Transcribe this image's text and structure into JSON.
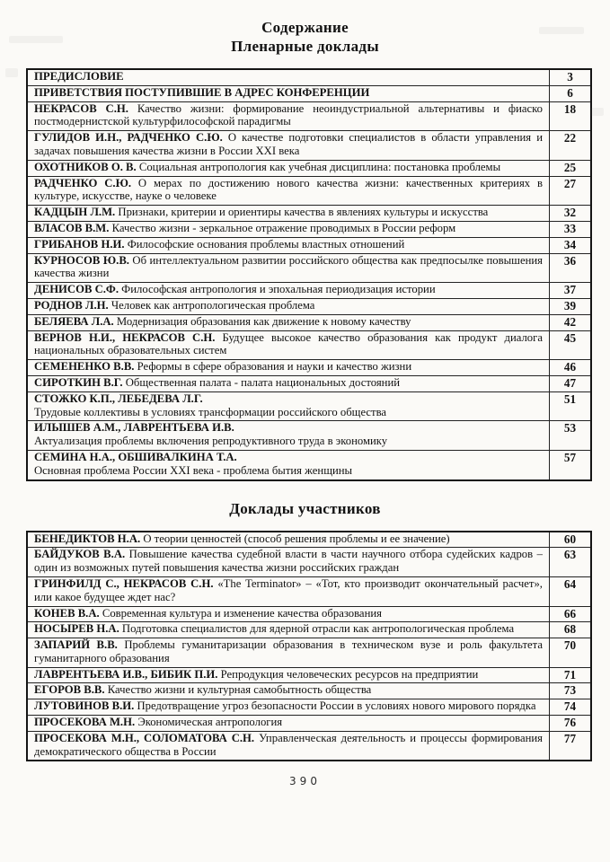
{
  "page": {
    "title": "Содержание",
    "footer_page_number": "390"
  },
  "sections": [
    {
      "heading": "Пленарные доклады",
      "rows": [
        {
          "authors": "ПРЕДИСЛОВИЕ",
          "title": "",
          "page": "3"
        },
        {
          "authors": "ПРИВЕТСТВИЯ ПОСТУПИВШИЕ В АДРЕС КОНФЕРЕНЦИИ",
          "title": "",
          "page": "6"
        },
        {
          "authors": "НЕКРАСОВ С.Н.",
          "title": "Качество жизни: формирование неоиндустриальной альтернативы и фиаско постмодернистской культурфилософской парадигмы",
          "page": "18"
        },
        {
          "authors": "ГУЛИДОВ И.Н., РАДЧЕНКО С.Ю.",
          "title": "О качестве подготовки специалистов в области управления и задачах повышения качества жизни в России XXI века",
          "page": "22"
        },
        {
          "authors": "ОХОТНИКОВ О. В.",
          "title": "Социальная антропология как учебная дисциплина: постановка проблемы",
          "page": "25"
        },
        {
          "authors": "РАДЧЕНКО С.Ю.",
          "title": "О мерах по достижению нового качества жизни: качественных критериях в культуре, искусстве, науке о человеке",
          "page": "27"
        },
        {
          "authors": "КАДЦЫН Л.М.",
          "title": "Признаки, критерии и ориентиры качества в явлениях культуры и искусства",
          "page": "32"
        },
        {
          "authors": "ВЛАСОВ В.М.",
          "title": "Качество жизни - зеркальное отражение проводимых в России реформ",
          "page": "33"
        },
        {
          "authors": "ГРИБАНОВ Н.И.",
          "title": "Философские основания проблемы властных отношений",
          "page": "34"
        },
        {
          "authors": "КУРНОСОВ Ю.В.",
          "title": "Об интеллектуальном развитии российского общества как предпосылке повышения качества жизни",
          "page": "36"
        },
        {
          "authors": "ДЕНИСОВ С.Ф.",
          "title": "Философская антропология и эпохальная периодизация истории",
          "page": "37"
        },
        {
          "authors": "РОДНОВ Л.Н.",
          "title": "Человек как антропологическая проблема",
          "page": "39"
        },
        {
          "authors": "БЕЛЯЕВА Л.А.",
          "title": "Модернизация образования как движение к новому качеству",
          "page": "42"
        },
        {
          "authors": "ВЕРНОВ Н.И., НЕКРАСОВ С.Н.",
          "title": "Будущее высокое качество образования как продукт диалога национальных образовательных систем",
          "page": "45"
        },
        {
          "authors": "СЕМЕНЕНКО В.В.",
          "title": "Реформы в сфере образования и науки и качество жизни",
          "page": "46"
        },
        {
          "authors": "СИРОТКИН В.Г.",
          "title": "Общественная палата - палата национальных достояний",
          "page": "47"
        },
        {
          "authors": "СТОЖКО К.П., ЛЕБЕДЕВА Л.Г.",
          "title": "Трудовые коллективы в условиях трансформации российского общества",
          "page": "51",
          "newline": true
        },
        {
          "authors": "ИЛЫШЕВ А.М., ЛАВРЕНТЬЕВА И.В.",
          "title": "Актуализация проблемы включения репродуктивного труда в экономику",
          "page": "53",
          "newline": true
        },
        {
          "authors": "СЕМИНА Н.А., ОБШИВАЛКИНА Т.А.",
          "title": "Основная проблема России XXI века - проблема бытия женщины",
          "page": "57",
          "newline": true
        }
      ]
    },
    {
      "heading": "Доклады участников",
      "rows": [
        {
          "authors": "БЕНЕДИКТОВ Н.А.",
          "title": "О теории ценностей (способ решения проблемы и ее значение)",
          "page": "60"
        },
        {
          "authors": "БАЙДУКОВ В.А.",
          "title": "Повышение качества судебной власти в части научного отбора судейских кадров – один из возможных путей повышения качества жизни российских граждан",
          "page": "63"
        },
        {
          "authors": "ГРИНФИЛД С., НЕКРАСОВ С.Н.",
          "title": "«The Terminator» – «Тот, кто производит окончательный расчет», или какое будущее ждет нас?",
          "page": "64"
        },
        {
          "authors": "КОНЕВ В.А.",
          "title": "Современная культура и изменение качества образования",
          "page": "66"
        },
        {
          "authors": "НОСЫРЕВ Н.А.",
          "title": "Подготовка специалистов для ядерной отрасли как антропологическая проблема",
          "page": "68"
        },
        {
          "authors": "ЗАПАРИЙ В.В.",
          "title": "Проблемы гуманитаризации образования в техническом вузе и роль факультета гуманитарного образования",
          "page": "70"
        },
        {
          "authors": "ЛАВРЕНТЬЕВА И.В., БИБИК П.И.",
          "title": "Репродукция человеческих ресурсов на предприятии",
          "page": "71"
        },
        {
          "authors": "ЕГОРОВ В.В.",
          "title": "Качество жизни и культурная самобытность общества",
          "page": "73"
        },
        {
          "authors": "ЛУТОВИНОВ В.И.",
          "title": "Предотвращение угроз безопасности России в условиях нового мирового порядка",
          "page": "74"
        },
        {
          "authors": "ПРОСЕКОВА М.Н.",
          "title": "Экономическая антропология",
          "page": "76"
        },
        {
          "authors": "ПРОСЕКОВА М.Н., СОЛОМАТОВА С.Н.",
          "title": "Управленческая деятельность и процессы формирования демократического общества в России",
          "page": "77"
        }
      ]
    }
  ]
}
